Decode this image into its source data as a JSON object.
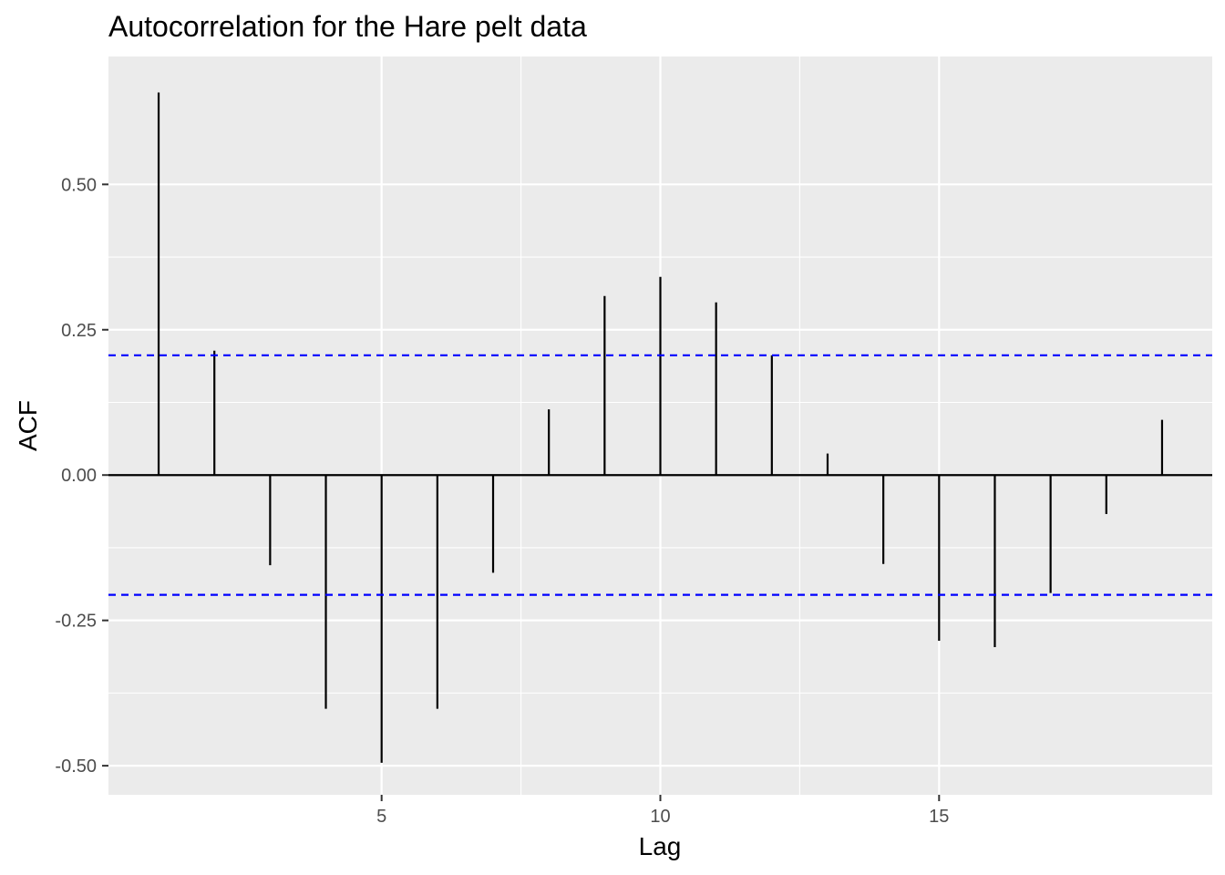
{
  "chart_data": {
    "type": "bar",
    "title": "Autocorrelation for the Hare pelt data",
    "xlabel": "Lag",
    "ylabel": "ACF",
    "x": [
      1,
      2,
      3,
      4,
      5,
      6,
      7,
      8,
      9,
      10,
      11,
      12,
      13,
      14,
      15,
      16,
      17,
      18,
      19
    ],
    "values": [
      0.658,
      0.214,
      -0.155,
      -0.402,
      -0.495,
      -0.402,
      -0.168,
      0.113,
      0.308,
      0.341,
      0.297,
      0.206,
      0.037,
      -0.153,
      -0.285,
      -0.296,
      -0.203,
      -0.067,
      0.095
    ],
    "confidence_bounds": [
      0.206,
      -0.206
    ],
    "xlim": [
      0.1,
      19.9
    ],
    "ylim": [
      -0.55,
      0.72
    ],
    "x_ticks": [
      5,
      10,
      15
    ],
    "x_tick_labels": [
      "5",
      "10",
      "15"
    ],
    "y_ticks": [
      -0.5,
      -0.25,
      0,
      0.25,
      0.5
    ],
    "y_tick_labels": [
      "-0.50",
      "-0.25",
      "0.00",
      "0.25",
      "0.50"
    ],
    "grid": true,
    "colors": {
      "panel_background": "#ebebeb",
      "grid_major": "#ffffff",
      "grid_minor": "#ffffff",
      "bars": "#000000",
      "confidence_line": "#0000ff"
    }
  }
}
